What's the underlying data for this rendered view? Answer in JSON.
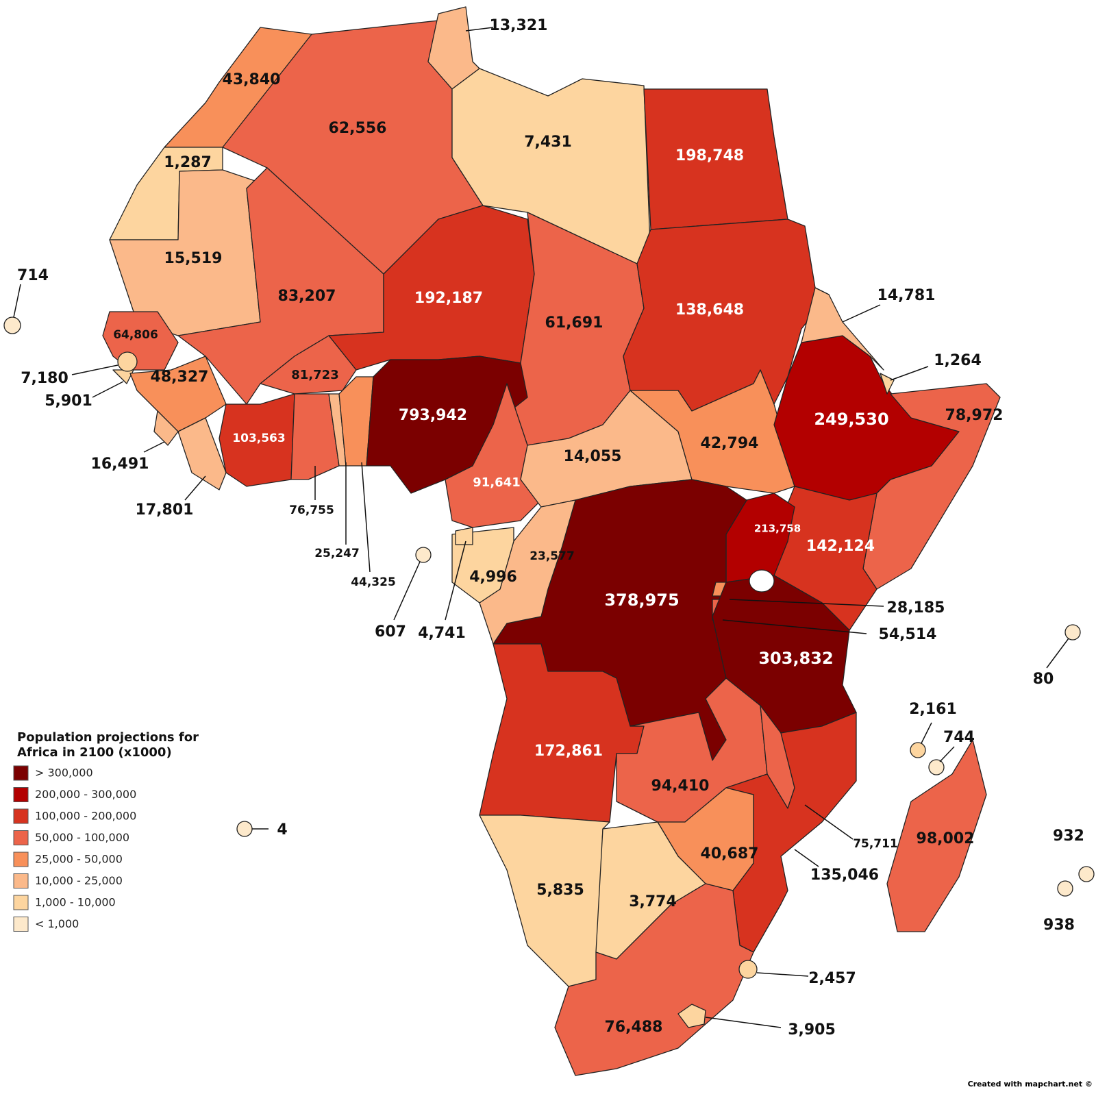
{
  "legend": {
    "title_lines": [
      "Population projections for",
      "Africa in 2100 (x1000)"
    ],
    "items": [
      {
        "label": "> 300,000",
        "color": "#7b0000"
      },
      {
        "label": "200,000 - 300,000",
        "color": "#b30000"
      },
      {
        "label": "100,000 - 200,000",
        "color": "#d7331f"
      },
      {
        "label": "50,000 - 100,000",
        "color": "#ec644a"
      },
      {
        "label": "25,000 - 50,000",
        "color": "#f8905a"
      },
      {
        "label": "10,000 - 25,000",
        "color": "#fbb98a"
      },
      {
        "label": "1,000 - 10,000",
        "color": "#fdd59f"
      },
      {
        "label": "< 1,000",
        "color": "#fde9cb"
      }
    ]
  },
  "regions": [
    {
      "label": "43,840",
      "color": "#f8905a"
    },
    {
      "label": "1,287",
      "color": "#fdd59f"
    },
    {
      "label": "62,556",
      "color": "#ec644a"
    },
    {
      "label": "13,321",
      "color": "#fbb98a"
    },
    {
      "label": "7,431",
      "color": "#fdd59f"
    },
    {
      "label": "198,748",
      "color": "#d7331f"
    },
    {
      "label": "15,519",
      "color": "#fbb98a"
    },
    {
      "label": "83,207",
      "color": "#ec644a"
    },
    {
      "label": "192,187",
      "color": "#d7331f"
    },
    {
      "label": "61,691",
      "color": "#ec644a"
    },
    {
      "label": "138,648",
      "color": "#d7331f"
    },
    {
      "label": "64,806",
      "color": "#ec644a"
    },
    {
      "label": "5,901",
      "color": "#fdd59f"
    },
    {
      "label": "48,327",
      "color": "#f8905a"
    },
    {
      "label": "16,491",
      "color": "#fbb98a"
    },
    {
      "label": "17,801",
      "color": "#fbb98a"
    },
    {
      "label": "103,563",
      "color": "#d7331f"
    },
    {
      "label": "81,723",
      "color": "#ec644a"
    },
    {
      "label": "76,755",
      "color": "#ec644a"
    },
    {
      "label": "25,247",
      "color": "#fbb98a"
    },
    {
      "label": "44,325",
      "color": "#f8905a"
    },
    {
      "label": "793,942",
      "color": "#7b0000"
    },
    {
      "label": "91,641",
      "color": "#ec644a"
    },
    {
      "label": "14,055",
      "color": "#fbb98a"
    },
    {
      "label": "42,794",
      "color": "#f8905a"
    },
    {
      "label": "249,530",
      "color": "#b30000"
    },
    {
      "label": "14,781",
      "color": "#fbb98a"
    },
    {
      "label": "1,264",
      "color": "#fdd59f"
    },
    {
      "label": "78,972",
      "color": "#ec644a"
    },
    {
      "label": "142,124",
      "color": "#d7331f"
    },
    {
      "label": "213,758",
      "color": "#b30000"
    },
    {
      "label": "378,975",
      "color": "#7b0000"
    },
    {
      "label": "23,577",
      "color": "#fbb98a"
    },
    {
      "label": "4,996",
      "color": "#fdd59f"
    },
    {
      "label": "4,741",
      "color": "#fdd59f"
    },
    {
      "label": "28,185",
      "color": "#f8905a"
    },
    {
      "label": "54,514",
      "color": "#ec644a"
    },
    {
      "label": "303,832",
      "color": "#7b0000"
    },
    {
      "label": "172,861",
      "color": "#d7331f"
    },
    {
      "label": "94,410",
      "color": "#ec644a"
    },
    {
      "label": "75,711",
      "color": "#ec644a"
    },
    {
      "label": "135,046",
      "color": "#d7331f"
    },
    {
      "label": "40,687",
      "color": "#f8905a"
    },
    {
      "label": "5,835",
      "color": "#fdd59f"
    },
    {
      "label": "3,774",
      "color": "#fdd59f"
    },
    {
      "label": "76,488",
      "color": "#ec644a"
    },
    {
      "label": "2,457",
      "color": "#fdd59f"
    },
    {
      "label": "3,905",
      "color": "#fdd59f"
    },
    {
      "label": "98,002",
      "color": "#ec644a"
    },
    {
      "label": "7,180",
      "color": "#fdd59f"
    },
    {
      "label": "714",
      "color": "#fde9cb"
    },
    {
      "label": "607",
      "color": "#fde9cb"
    },
    {
      "label": "4",
      "color": "#fde9cb"
    },
    {
      "label": "2,161",
      "color": "#fdd59f"
    },
    {
      "label": "744",
      "color": "#fde9cb"
    },
    {
      "label": "80",
      "color": "#fde9cb"
    },
    {
      "label": "932",
      "color": "#fde9cb"
    },
    {
      "label": "938",
      "color": "#fde9cb"
    }
  ],
  "credit": "Created with mapchart.net ©"
}
